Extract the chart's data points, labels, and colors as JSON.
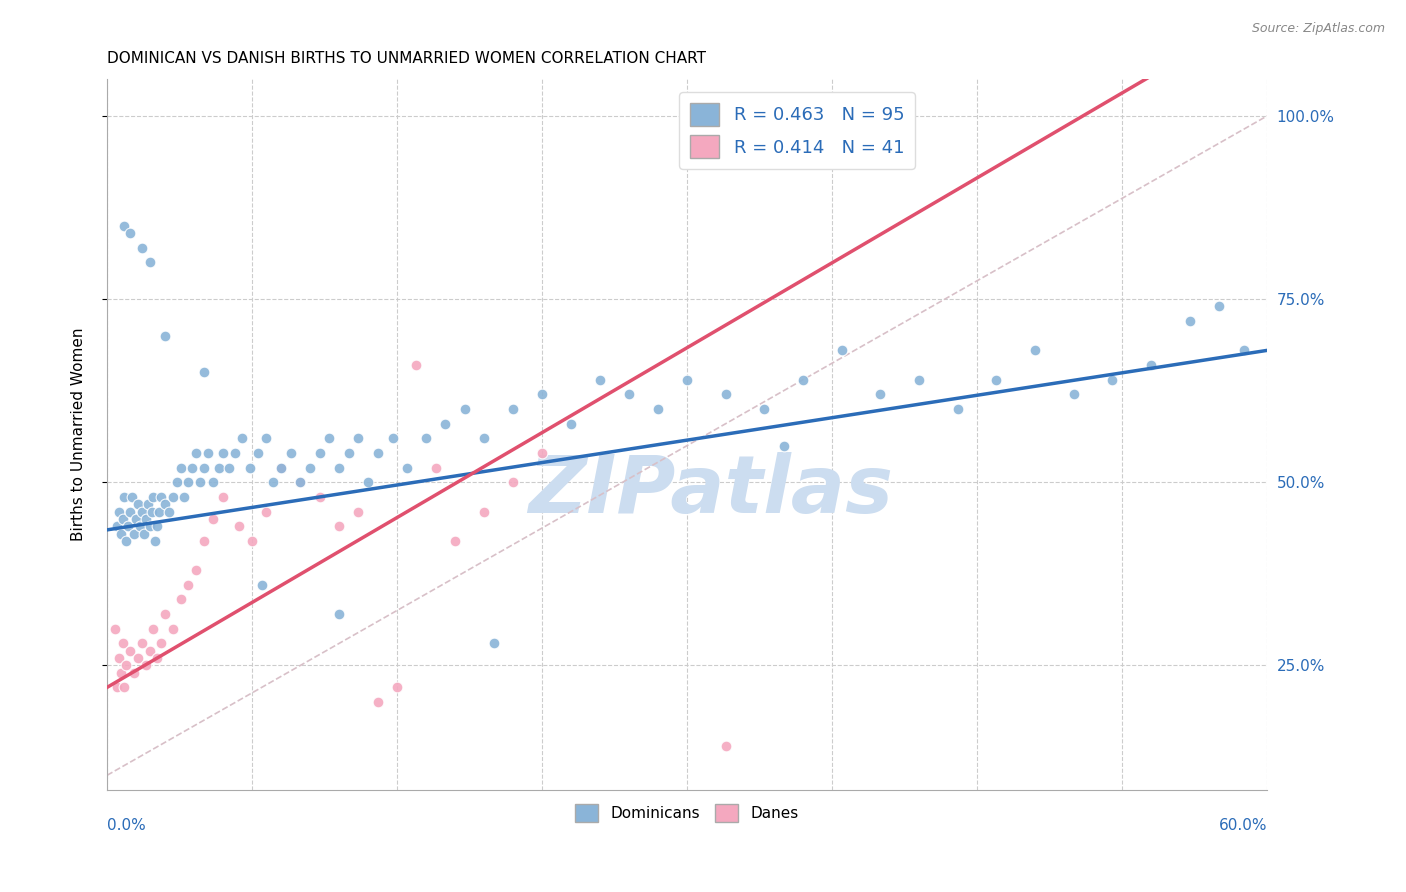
{
  "title": "DOMINICAN VS DANISH BIRTHS TO UNMARRIED WOMEN CORRELATION CHART",
  "source": "Source: ZipAtlas.com",
  "ylabel": "Births to Unmarried Women",
  "ytick_values": [
    0.25,
    0.5,
    0.75,
    1.0
  ],
  "xmin": 0.0,
  "xmax": 0.6,
  "ymin": 0.08,
  "ymax": 1.05,
  "dominicans_color": "#8ab4d8",
  "danes_color": "#f4a8bf",
  "trend_dominicans_color": "#2b6cb8",
  "trend_danes_color": "#e0506e",
  "diagonal_color": "#d8c0c8",
  "watermark": "ZIPatlas",
  "watermark_color": "#ccddf0",
  "dom_R": 0.463,
  "dom_N": 95,
  "dan_R": 0.414,
  "dan_N": 41,
  "dominicans_x": [
    0.005,
    0.006,
    0.007,
    0.008,
    0.009,
    0.01,
    0.011,
    0.012,
    0.013,
    0.014,
    0.015,
    0.016,
    0.017,
    0.018,
    0.019,
    0.02,
    0.021,
    0.022,
    0.023,
    0.024,
    0.025,
    0.026,
    0.027,
    0.028,
    0.03,
    0.032,
    0.034,
    0.036,
    0.038,
    0.04,
    0.042,
    0.044,
    0.046,
    0.048,
    0.05,
    0.052,
    0.055,
    0.058,
    0.06,
    0.063,
    0.066,
    0.07,
    0.074,
    0.078,
    0.082,
    0.086,
    0.09,
    0.095,
    0.1,
    0.105,
    0.11,
    0.115,
    0.12,
    0.125,
    0.13,
    0.135,
    0.14,
    0.148,
    0.155,
    0.165,
    0.175,
    0.185,
    0.195,
    0.21,
    0.225,
    0.24,
    0.255,
    0.27,
    0.285,
    0.3,
    0.32,
    0.34,
    0.36,
    0.38,
    0.4,
    0.42,
    0.44,
    0.46,
    0.48,
    0.5,
    0.52,
    0.54,
    0.56,
    0.575,
    0.588,
    0.009,
    0.012,
    0.018,
    0.022,
    0.03,
    0.05,
    0.08,
    0.12,
    0.2,
    0.35
  ],
  "dominicans_y": [
    0.44,
    0.46,
    0.43,
    0.45,
    0.48,
    0.42,
    0.44,
    0.46,
    0.48,
    0.43,
    0.45,
    0.47,
    0.44,
    0.46,
    0.43,
    0.45,
    0.47,
    0.44,
    0.46,
    0.48,
    0.42,
    0.44,
    0.46,
    0.48,
    0.47,
    0.46,
    0.48,
    0.5,
    0.52,
    0.48,
    0.5,
    0.52,
    0.54,
    0.5,
    0.52,
    0.54,
    0.5,
    0.52,
    0.54,
    0.52,
    0.54,
    0.56,
    0.52,
    0.54,
    0.56,
    0.5,
    0.52,
    0.54,
    0.5,
    0.52,
    0.54,
    0.56,
    0.52,
    0.54,
    0.56,
    0.5,
    0.54,
    0.56,
    0.52,
    0.56,
    0.58,
    0.6,
    0.56,
    0.6,
    0.62,
    0.58,
    0.64,
    0.62,
    0.6,
    0.64,
    0.62,
    0.6,
    0.64,
    0.68,
    0.62,
    0.64,
    0.6,
    0.64,
    0.68,
    0.62,
    0.64,
    0.66,
    0.72,
    0.74,
    0.68,
    0.85,
    0.84,
    0.82,
    0.8,
    0.7,
    0.65,
    0.36,
    0.32,
    0.28,
    0.55
  ],
  "danes_x": [
    0.004,
    0.005,
    0.006,
    0.007,
    0.008,
    0.009,
    0.01,
    0.012,
    0.014,
    0.016,
    0.018,
    0.02,
    0.022,
    0.024,
    0.026,
    0.028,
    0.03,
    0.034,
    0.038,
    0.042,
    0.046,
    0.05,
    0.055,
    0.06,
    0.068,
    0.075,
    0.082,
    0.09,
    0.1,
    0.11,
    0.12,
    0.13,
    0.14,
    0.15,
    0.16,
    0.17,
    0.18,
    0.195,
    0.21,
    0.225,
    0.32
  ],
  "danes_y": [
    0.3,
    0.22,
    0.26,
    0.24,
    0.28,
    0.22,
    0.25,
    0.27,
    0.24,
    0.26,
    0.28,
    0.25,
    0.27,
    0.3,
    0.26,
    0.28,
    0.32,
    0.3,
    0.34,
    0.36,
    0.38,
    0.42,
    0.45,
    0.48,
    0.44,
    0.42,
    0.46,
    0.52,
    0.5,
    0.48,
    0.44,
    0.46,
    0.2,
    0.22,
    0.66,
    0.52,
    0.42,
    0.46,
    0.5,
    0.54,
    0.14
  ]
}
